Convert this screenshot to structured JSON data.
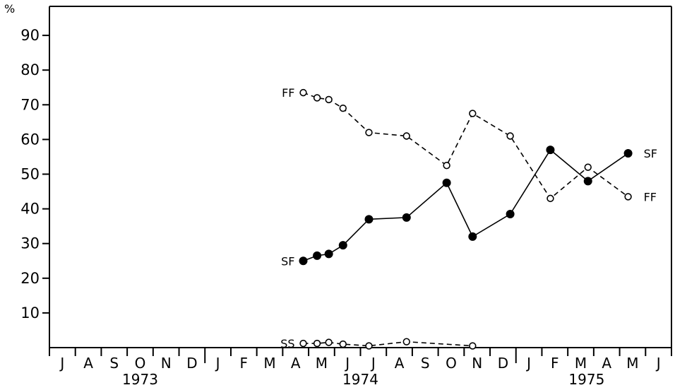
{
  "chart_data": {
    "type": "line",
    "title": "",
    "xlabel": "",
    "ylabel": "%",
    "ylim": [
      0,
      100
    ],
    "yticks": [
      10,
      20,
      30,
      40,
      50,
      60,
      70,
      80,
      90
    ],
    "x_months": [
      "J",
      "A",
      "S",
      "O",
      "N",
      "D",
      "J",
      "F",
      "M",
      "A",
      "M",
      "J",
      "J",
      "A",
      "S",
      "O",
      "N",
      "D",
      "J",
      "F",
      "M",
      "A",
      "M",
      "J"
    ],
    "years": [
      "1973",
      "1974",
      "1975"
    ],
    "grid": false,
    "series": [
      {
        "name": "FF",
        "style": "dashed",
        "marker": "open-circle",
        "points": [
          {
            "x": "1974-04-15",
            "y": 73.5
          },
          {
            "x": "1974-05-01",
            "y": 72
          },
          {
            "x": "1974-05-15",
            "y": 71.5
          },
          {
            "x": "1974-06-01",
            "y": 69
          },
          {
            "x": "1974-07-01",
            "y": 62
          },
          {
            "x": "1974-08-15",
            "y": 61
          },
          {
            "x": "1974-10-01",
            "y": 52.5
          },
          {
            "x": "1974-11-01",
            "y": 67.5
          },
          {
            "x": "1974-12-15",
            "y": 61
          },
          {
            "x": "1975-02-01",
            "y": 43
          },
          {
            "x": "1975-03-15",
            "y": 52
          },
          {
            "x": "1975-05-01",
            "y": 43.5
          }
        ]
      },
      {
        "name": "SF",
        "style": "solid",
        "marker": "filled-circle",
        "points": [
          {
            "x": "1974-04-15",
            "y": 25
          },
          {
            "x": "1974-05-01",
            "y": 26.5
          },
          {
            "x": "1974-05-15",
            "y": 27
          },
          {
            "x": "1974-06-01",
            "y": 29.5
          },
          {
            "x": "1974-07-01",
            "y": 37
          },
          {
            "x": "1974-08-15",
            "y": 37.5
          },
          {
            "x": "1974-10-01",
            "y": 47.5
          },
          {
            "x": "1974-11-01",
            "y": 32
          },
          {
            "x": "1974-12-15",
            "y": 38.5
          },
          {
            "x": "1975-02-01",
            "y": 57
          },
          {
            "x": "1975-03-15",
            "y": 48
          },
          {
            "x": "1975-05-01",
            "y": 56
          }
        ]
      },
      {
        "name": "SS",
        "style": "dashed",
        "marker": "open-circle",
        "points": [
          {
            "x": "1974-04-15",
            "y": 1.2
          },
          {
            "x": "1974-05-01",
            "y": 1.2
          },
          {
            "x": "1974-05-15",
            "y": 1.5
          },
          {
            "x": "1974-06-01",
            "y": 1
          },
          {
            "x": "1974-07-01",
            "y": 0.5
          },
          {
            "x": "1974-08-15",
            "y": 1.7
          },
          {
            "x": "1974-11-01",
            "y": 0.5
          }
        ]
      }
    ],
    "annotations": [
      {
        "text": "FF",
        "series": "FF",
        "position": "start"
      },
      {
        "text": "SF",
        "series": "SF",
        "position": "start"
      },
      {
        "text": "SS",
        "series": "SS",
        "position": "start"
      },
      {
        "text": "SF",
        "series": "SF",
        "position": "end"
      },
      {
        "text": "FF",
        "series": "FF",
        "position": "end"
      }
    ]
  }
}
